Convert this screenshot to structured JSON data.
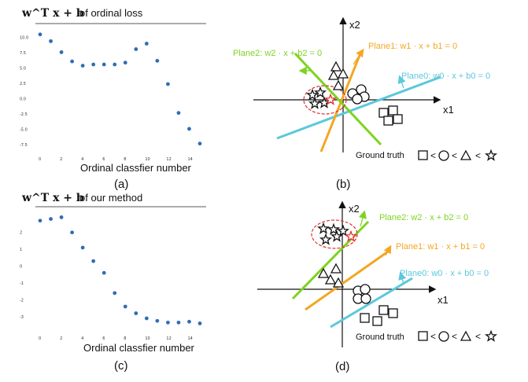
{
  "panels": {
    "a": {
      "title_math": "w^T x + b",
      "title_text": "of ordinal loss",
      "xlabel": "Ordinal classfier number",
      "caption": "(a)"
    },
    "b": {
      "caption": "(b)",
      "axis_x": "x1",
      "axis_y": "x2",
      "plane0": "Plane0: w0 · x + b0 = 0",
      "plane1": "Plane1: w1 · x + b1 = 0",
      "plane2": "Plane2: w2 · x + b2 = 0",
      "ground_truth": "Ground truth",
      "lt": "<"
    },
    "c": {
      "title_math": "w^T x + b",
      "title_text": "of our method",
      "xlabel": "Ordinal classfier number",
      "caption": "(c)"
    },
    "d": {
      "caption": "(d)",
      "axis_x": "x1",
      "axis_y": "x2",
      "plane0": "Plane0: w0 · x + b0 = 0",
      "plane1": "Plane1: w1 · x + b1 = 0",
      "plane2": "Plane2: w2 · x + b2 = 0",
      "ground_truth": "Ground truth",
      "lt": "<"
    }
  },
  "colors": {
    "plane0": "#5bc8dc",
    "plane1": "#f5a623",
    "plane2": "#7ed321",
    "points": "#2f6db5",
    "ellipse": "#e03030",
    "red_star": "#e03030"
  },
  "chart_data": [
    {
      "type": "scatter",
      "x": [
        0,
        1,
        2,
        3,
        4,
        5,
        6,
        7,
        8,
        9,
        10,
        11,
        12,
        13,
        14,
        15
      ],
      "y": [
        10.5,
        9.4,
        7.6,
        6.1,
        5.4,
        5.6,
        5.6,
        5.6,
        5.9,
        8.1,
        9.0,
        6.2,
        2.4,
        -2.3,
        -4.9,
        -7.3
      ],
      "xticks": [
        "0",
        "2",
        "4",
        "6",
        "8",
        "10",
        "12",
        "14"
      ],
      "yticks": [
        "10.0",
        "7.5",
        "5.0",
        "2.5",
        "0.0",
        "-2.5",
        "-5.0",
        "-7.5"
      ],
      "xlim": [
        0,
        15
      ],
      "ylim": [
        -8.5,
        11.5
      ]
    },
    {
      "type": "scatter",
      "x": [
        0,
        1,
        2,
        3,
        4,
        5,
        6,
        7,
        8,
        9,
        10,
        11,
        12,
        13,
        14,
        15
      ],
      "y": [
        2.7,
        2.8,
        2.9,
        2.0,
        1.1,
        0.3,
        -0.4,
        -1.6,
        -2.4,
        -2.8,
        -3.1,
        -3.25,
        -3.35,
        -3.35,
        -3.3,
        -3.4
      ],
      "xticks": [
        "0",
        "2",
        "4",
        "6",
        "8",
        "10",
        "12",
        "14"
      ],
      "yticks": [
        "2",
        "1",
        "0",
        "-1",
        "-2",
        "-3"
      ],
      "xlim": [
        0,
        15
      ],
      "ylim": [
        -3.8,
        3.2
      ]
    }
  ]
}
